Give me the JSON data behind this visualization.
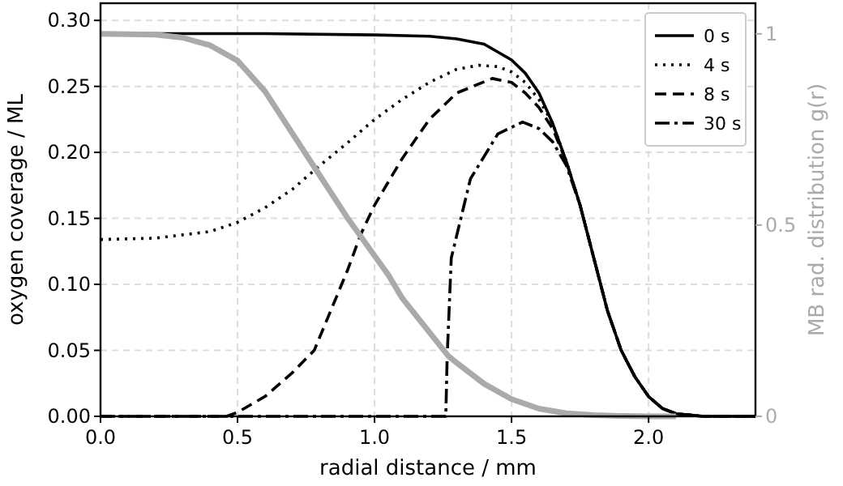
{
  "chart_data": {
    "type": "line",
    "xlabel": "radial distance / mm",
    "ylabel": "oxygen coverage / ML",
    "y2label": "MB rad. distribution g(r)",
    "xlim": [
      0,
      2.39
    ],
    "ylim": [
      0,
      0.313
    ],
    "y2lim": [
      0,
      1.08
    ],
    "xticks": [
      {
        "value": 0,
        "label": "0.0"
      },
      {
        "value": 0.5,
        "label": "0.5"
      },
      {
        "value": 1,
        "label": "1.0"
      },
      {
        "value": 1.5,
        "label": "1.5"
      },
      {
        "value": 2,
        "label": "2.0"
      }
    ],
    "yticks": [
      {
        "value": 0,
        "label": "0.00"
      },
      {
        "value": 0.05,
        "label": "0.05"
      },
      {
        "value": 0.1,
        "label": "0.10"
      },
      {
        "value": 0.15,
        "label": "0.15"
      },
      {
        "value": 0.2,
        "label": "0.20"
      },
      {
        "value": 0.25,
        "label": "0.25"
      },
      {
        "value": 0.3,
        "label": "0.30"
      }
    ],
    "y2ticks": [
      0,
      0.5,
      1
    ],
    "grid": true,
    "legend": "top right",
    "series": [
      {
        "name": "0 s",
        "color": "#000000",
        "line_style": "solid",
        "x": [
          0,
          0.6,
          1.0,
          1.2,
          1.3,
          1.4,
          1.5,
          1.55,
          1.6,
          1.65,
          1.7,
          1.75,
          1.8,
          1.85,
          1.9,
          1.95,
          2.0,
          2.05,
          2.1,
          2.2,
          2.39
        ],
        "values": [
          0.29,
          0.29,
          0.289,
          0.288,
          0.286,
          0.282,
          0.27,
          0.26,
          0.245,
          0.222,
          0.193,
          0.16,
          0.12,
          0.08,
          0.05,
          0.03,
          0.015,
          0.006,
          0.002,
          0,
          0
        ]
      },
      {
        "name": "4 s",
        "color": "#000000",
        "line_style": "dotted",
        "x": [
          0,
          0.2,
          0.4,
          0.5,
          0.6,
          0.7,
          0.8,
          0.9,
          1.0,
          1.1,
          1.2,
          1.3,
          1.38,
          1.45,
          1.5,
          1.55,
          1.6,
          1.65,
          1.7,
          1.75,
          1.8,
          1.85,
          1.9,
          1.95,
          2.0,
          2.05,
          2.1,
          2.2,
          2.39
        ],
        "values": [
          0.134,
          0.135,
          0.14,
          0.147,
          0.158,
          0.172,
          0.19,
          0.207,
          0.225,
          0.24,
          0.253,
          0.263,
          0.266,
          0.265,
          0.261,
          0.253,
          0.24,
          0.222,
          0.193,
          0.16,
          0.12,
          0.08,
          0.05,
          0.03,
          0.015,
          0.006,
          0.002,
          0,
          0
        ]
      },
      {
        "name": "8 s",
        "color": "#000000",
        "line_style": "dashed",
        "x": [
          0,
          0.46,
          0.5,
          0.6,
          0.7,
          0.78,
          0.9,
          0.95,
          1.0,
          1.1,
          1.2,
          1.3,
          1.43,
          1.5,
          1.55,
          1.6,
          1.65,
          1.7,
          1.75,
          1.8,
          1.85,
          1.9,
          1.95,
          2.0,
          2.05,
          2.1,
          2.2,
          2.39
        ],
        "values": [
          0,
          0,
          0.003,
          0.015,
          0.033,
          0.05,
          0.11,
          0.138,
          0.16,
          0.195,
          0.225,
          0.245,
          0.256,
          0.253,
          0.245,
          0.234,
          0.218,
          0.193,
          0.16,
          0.12,
          0.08,
          0.05,
          0.03,
          0.015,
          0.006,
          0.002,
          0,
          0
        ]
      },
      {
        "name": "30 s",
        "color": "#000000",
        "line_style": "dashdot",
        "x": [
          0,
          1.26,
          1.265,
          1.28,
          1.35,
          1.45,
          1.54,
          1.6,
          1.65,
          1.7,
          1.75,
          1.8,
          1.85,
          1.9,
          1.95,
          2.0,
          2.05,
          2.1,
          2.2,
          2.39
        ],
        "values": [
          0,
          0,
          0.045,
          0.12,
          0.18,
          0.214,
          0.223,
          0.218,
          0.208,
          0.19,
          0.16,
          0.12,
          0.08,
          0.05,
          0.03,
          0.015,
          0.006,
          0.002,
          0,
          0
        ]
      },
      {
        "color": "#aaaaaa",
        "axis": "y2",
        "line_style": "solid",
        "x": [
          0,
          0.2,
          0.3,
          0.4,
          0.5,
          0.6,
          0.7,
          0.8,
          0.9,
          0.95,
          1.0,
          1.05,
          1.1,
          1.2,
          1.27,
          1.3,
          1.4,
          1.5,
          1.6,
          1.7,
          1.8,
          1.9,
          2.0,
          2.1
        ],
        "values": [
          1,
          0.998,
          0.99,
          0.97,
          0.93,
          0.85,
          0.74,
          0.63,
          0.52,
          0.47,
          0.42,
          0.37,
          0.31,
          0.22,
          0.157,
          0.14,
          0.085,
          0.045,
          0.02,
          0.008,
          0.003,
          0.001,
          0,
          0
        ]
      }
    ]
  }
}
